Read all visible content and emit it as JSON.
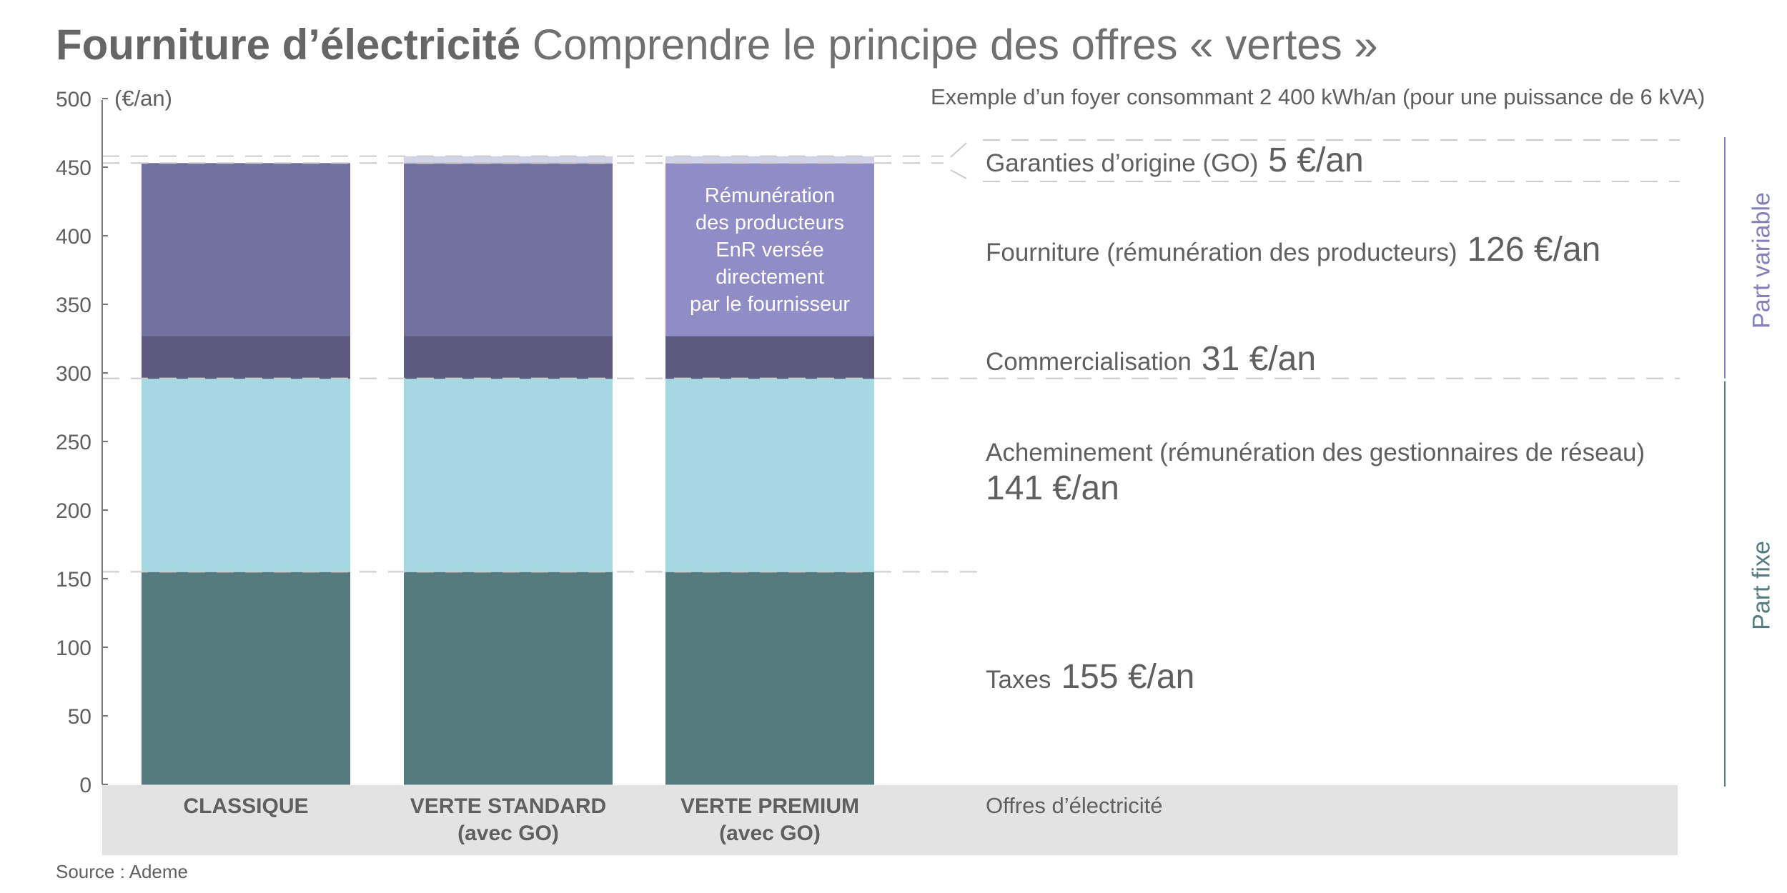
{
  "header": {
    "title_bold": "Fourniture d’électricité",
    "title_light": "Comprendre le principe des offres « vertes »",
    "example_note": "Exemple d’un foyer consommant 2 400 kWh/an (pour une puissance de 6 kVA)"
  },
  "source": "Source : Ademe",
  "right_labels": [
    {
      "label": "Garanties d’origine (GO)",
      "value": "5 €/an"
    },
    {
      "label": "Fourniture (rémunération des producteurs)",
      "value": "126 €/an"
    },
    {
      "label": "Commercialisation",
      "value": "31 €/an"
    },
    {
      "label": "Acheminement (rémunération des gestionnaires de réseau)",
      "value": "141 €/an"
    },
    {
      "label": "Taxes",
      "value": "155 €/an"
    }
  ],
  "brackets": {
    "variable": "Part variable",
    "fixe": "Part fixe"
  },
  "premium_annotation": [
    "Rémunération",
    "des producteurs",
    "EnR versée",
    "directement",
    "par le fournisseur"
  ],
  "chart_data": {
    "type": "bar",
    "stacked": true,
    "title": "Fourniture d’électricité Comprendre le principe des offres « vertes »",
    "ylabel": "(€/an)",
    "xlabel": "Offres d’électricité",
    "ylim": [
      0,
      500
    ],
    "yticks": [
      0,
      50,
      100,
      150,
      200,
      250,
      300,
      350,
      400,
      450,
      500
    ],
    "grid": false,
    "categories": [
      [
        "CLASSIQUE"
      ],
      [
        "VERTE STANDARD",
        "(avec GO)"
      ],
      [
        "VERTE PREMIUM",
        "(avec GO)"
      ]
    ],
    "series": [
      {
        "name": "Taxes",
        "values": [
          155,
          155,
          155
        ],
        "colors": [
          "#557b7e",
          "#557b7e",
          "#557b7e"
        ]
      },
      {
        "name": "Acheminement",
        "values": [
          141,
          141,
          141
        ],
        "colors": [
          "#a6d8e2",
          "#a6d8e2",
          "#a6d8e2"
        ]
      },
      {
        "name": "Commercialisation",
        "values": [
          31,
          31,
          31
        ],
        "colors": [
          "#5c5a7e",
          "#5c5a7e",
          "#5c5a7e"
        ]
      },
      {
        "name": "Fourniture",
        "values": [
          126,
          126,
          126
        ],
        "colors": [
          "#7371a0",
          "#7371a0",
          "#8f8cc6"
        ]
      },
      {
        "name": "Garanties d’origine (GO)",
        "values": [
          0,
          5,
          5
        ],
        "colors": [
          "#d3d3e8",
          "#d3d3e8",
          "#d3d3e8"
        ]
      }
    ],
    "colors": {
      "axis": "#777777",
      "dashed": "#cccccc",
      "category_band": "#e3e3e3",
      "part_variable": "#8480b8",
      "part_fixe": "#557b7e"
    }
  }
}
